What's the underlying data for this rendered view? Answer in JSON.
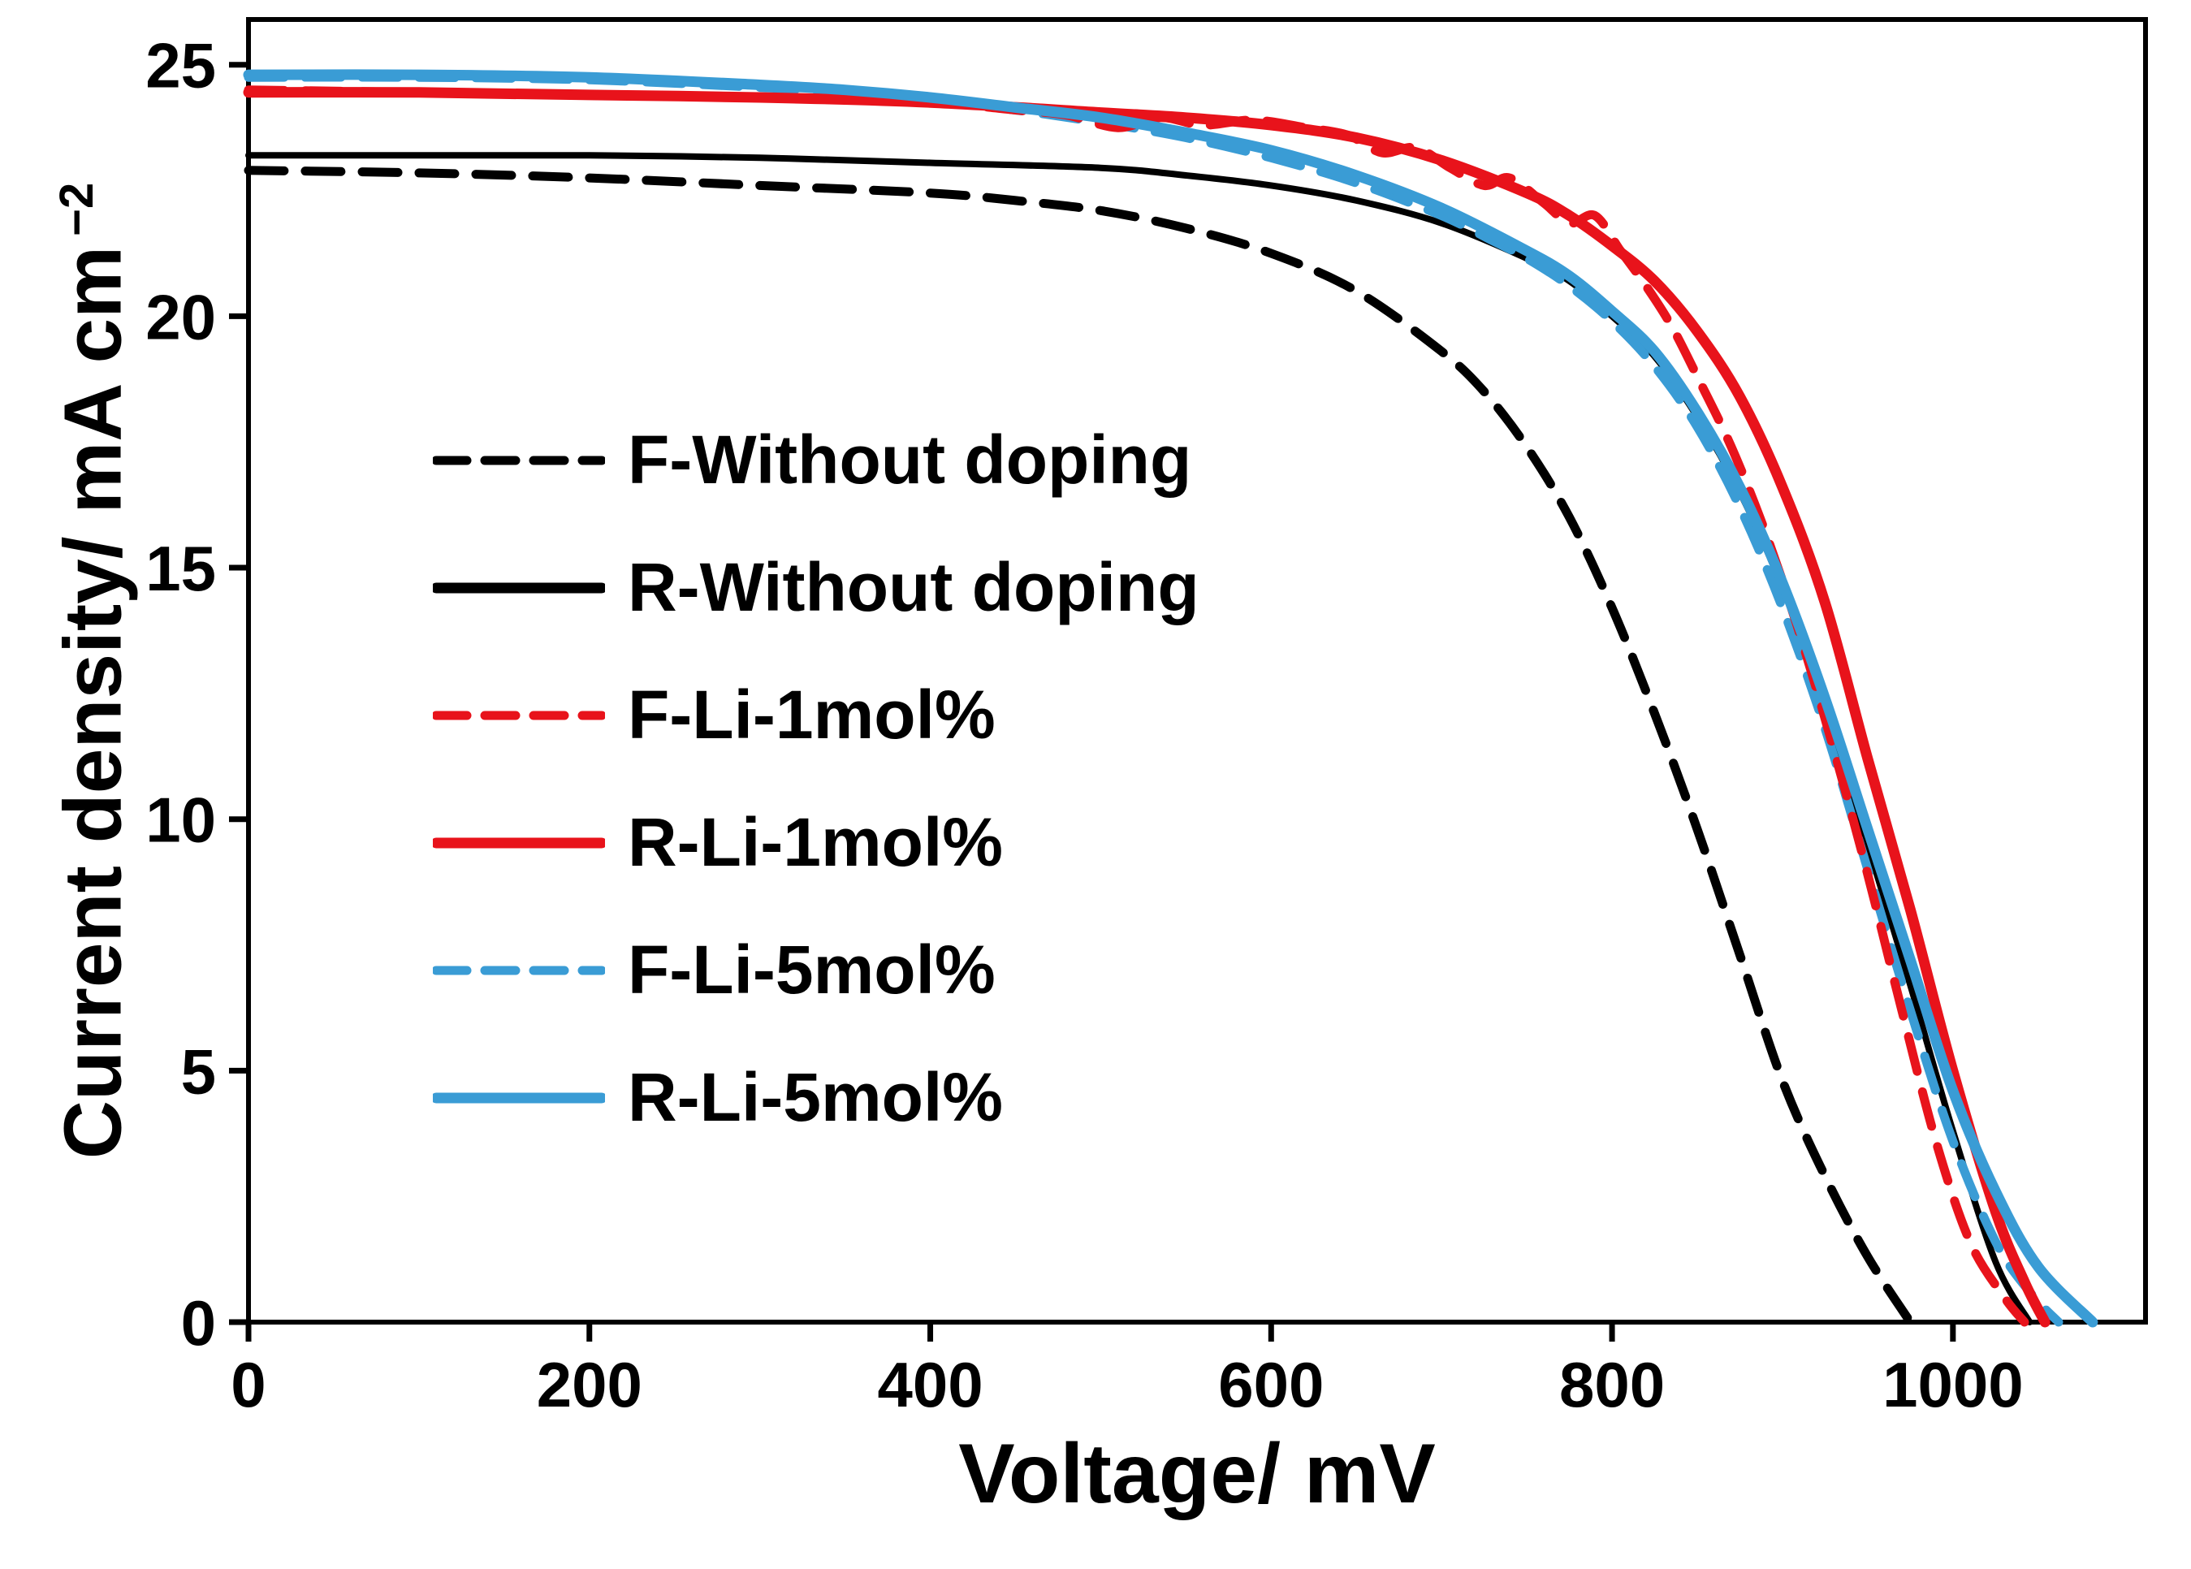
{
  "figure": {
    "background": "#ffffff",
    "axis_color": "#000000"
  },
  "chart_data": {
    "type": "line",
    "title": "",
    "xlabel": "Voltage/ mV",
    "ylabel": "Current density/ mA cm⁻²",
    "ylabel_main": "Current density/ mA cm",
    "ylabel_sup": "−2",
    "xlim": [
      0,
      1113
    ],
    "ylim": [
      0,
      25.9
    ],
    "x_ticks": [
      0,
      200,
      400,
      600,
      800,
      1000
    ],
    "y_ticks": [
      0,
      5,
      10,
      15,
      20,
      25
    ],
    "grid": false,
    "legend_position": "inside-left-middle",
    "series": [
      {
        "name": "F-Without doping",
        "color": "#000000",
        "line_style": "dashed",
        "points": [
          [
            0,
            22.9
          ],
          [
            100,
            22.85
          ],
          [
            200,
            22.75
          ],
          [
            300,
            22.6
          ],
          [
            400,
            22.45
          ],
          [
            450,
            22.3
          ],
          [
            500,
            22.1
          ],
          [
            550,
            21.75
          ],
          [
            600,
            21.25
          ],
          [
            650,
            20.5
          ],
          [
            700,
            19.3
          ],
          [
            725,
            18.5
          ],
          [
            750,
            17.4
          ],
          [
            775,
            16.0
          ],
          [
            800,
            14.2
          ],
          [
            825,
            12.1
          ],
          [
            850,
            9.8
          ],
          [
            875,
            7.3
          ],
          [
            900,
            4.8
          ],
          [
            925,
            2.9
          ],
          [
            950,
            1.3
          ],
          [
            975,
            0
          ]
        ]
      },
      {
        "name": "R-Without doping",
        "color": "#000000",
        "line_style": "solid",
        "points": [
          [
            0,
            23.2
          ],
          [
            100,
            23.2
          ],
          [
            200,
            23.2
          ],
          [
            300,
            23.15
          ],
          [
            400,
            23.05
          ],
          [
            500,
            22.95
          ],
          [
            550,
            22.8
          ],
          [
            600,
            22.6
          ],
          [
            650,
            22.3
          ],
          [
            700,
            21.85
          ],
          [
            750,
            21.15
          ],
          [
            775,
            20.7
          ],
          [
            800,
            20.0
          ],
          [
            825,
            19.2
          ],
          [
            850,
            18.0
          ],
          [
            875,
            16.5
          ],
          [
            900,
            14.6
          ],
          [
            925,
            12.3
          ],
          [
            950,
            9.5
          ],
          [
            975,
            6.7
          ],
          [
            1000,
            3.8
          ],
          [
            1025,
            1.2
          ],
          [
            1045,
            0
          ]
        ]
      },
      {
        "name": "F-Li-1mol%",
        "color": "#e8131b",
        "line_style": "dashed",
        "points": [
          [
            0,
            24.5
          ],
          [
            100,
            24.45
          ],
          [
            200,
            24.4
          ],
          [
            300,
            24.35
          ],
          [
            400,
            24.25
          ],
          [
            450,
            24.1
          ],
          [
            480,
            24.0
          ],
          [
            510,
            23.75
          ],
          [
            535,
            23.95
          ],
          [
            560,
            23.8
          ],
          [
            590,
            23.9
          ],
          [
            620,
            23.75
          ],
          [
            645,
            23.6
          ],
          [
            665,
            23.25
          ],
          [
            685,
            23.35
          ],
          [
            705,
            22.95
          ],
          [
            725,
            22.6
          ],
          [
            740,
            22.75
          ],
          [
            760,
            22.25
          ],
          [
            775,
            21.85
          ],
          [
            790,
            22.0
          ],
          [
            805,
            21.3
          ],
          [
            820,
            20.6
          ],
          [
            835,
            19.8
          ],
          [
            850,
            18.8
          ],
          [
            870,
            17.4
          ],
          [
            890,
            15.7
          ],
          [
            910,
            13.7
          ],
          [
            930,
            11.4
          ],
          [
            950,
            8.9
          ],
          [
            970,
            6.2
          ],
          [
            990,
            3.6
          ],
          [
            1010,
            1.6
          ],
          [
            1030,
            0.5
          ],
          [
            1042,
            0
          ]
        ]
      },
      {
        "name": "R-Li-1mol%",
        "color": "#e8131b",
        "line_style": "solid",
        "points": [
          [
            0,
            24.45
          ],
          [
            100,
            24.45
          ],
          [
            200,
            24.4
          ],
          [
            300,
            24.35
          ],
          [
            400,
            24.25
          ],
          [
            500,
            24.05
          ],
          [
            550,
            23.95
          ],
          [
            600,
            23.8
          ],
          [
            650,
            23.55
          ],
          [
            700,
            23.1
          ],
          [
            750,
            22.45
          ],
          [
            775,
            22.0
          ],
          [
            800,
            21.4
          ],
          [
            825,
            20.7
          ],
          [
            850,
            19.7
          ],
          [
            875,
            18.4
          ],
          [
            900,
            16.6
          ],
          [
            925,
            14.3
          ],
          [
            950,
            11.2
          ],
          [
            975,
            8.2
          ],
          [
            1000,
            5.0
          ],
          [
            1025,
            2.2
          ],
          [
            1042,
            0.8
          ],
          [
            1054,
            0
          ]
        ]
      },
      {
        "name": "F-Li-5mol%",
        "color": "#3a9cd5",
        "line_style": "dashed",
        "points": [
          [
            0,
            24.75
          ],
          [
            100,
            24.75
          ],
          [
            200,
            24.7
          ],
          [
            300,
            24.55
          ],
          [
            350,
            24.45
          ],
          [
            400,
            24.3
          ],
          [
            450,
            24.1
          ],
          [
            500,
            23.85
          ],
          [
            550,
            23.55
          ],
          [
            600,
            23.15
          ],
          [
            650,
            22.65
          ],
          [
            700,
            22.0
          ],
          [
            730,
            21.5
          ],
          [
            750,
            21.15
          ],
          [
            775,
            20.6
          ],
          [
            800,
            19.9
          ],
          [
            825,
            19.0
          ],
          [
            850,
            17.8
          ],
          [
            875,
            16.2
          ],
          [
            900,
            14.2
          ],
          [
            925,
            11.8
          ],
          [
            950,
            9.0
          ],
          [
            975,
            6.2
          ],
          [
            1000,
            3.6
          ],
          [
            1025,
            1.6
          ],
          [
            1045,
            0.6
          ],
          [
            1062,
            0
          ]
        ]
      },
      {
        "name": "R-Li-5mol%",
        "color": "#3a9cd5",
        "line_style": "solid",
        "points": [
          [
            0,
            24.8
          ],
          [
            100,
            24.8
          ],
          [
            200,
            24.75
          ],
          [
            300,
            24.6
          ],
          [
            350,
            24.5
          ],
          [
            400,
            24.35
          ],
          [
            450,
            24.15
          ],
          [
            500,
            23.95
          ],
          [
            550,
            23.65
          ],
          [
            600,
            23.3
          ],
          [
            650,
            22.8
          ],
          [
            700,
            22.15
          ],
          [
            750,
            21.3
          ],
          [
            775,
            20.8
          ],
          [
            800,
            20.1
          ],
          [
            825,
            19.3
          ],
          [
            850,
            18.1
          ],
          [
            875,
            16.6
          ],
          [
            900,
            14.7
          ],
          [
            925,
            12.4
          ],
          [
            950,
            9.8
          ],
          [
            975,
            7.2
          ],
          [
            1000,
            4.6
          ],
          [
            1025,
            2.6
          ],
          [
            1050,
            1.1
          ],
          [
            1082,
            0
          ]
        ]
      }
    ]
  }
}
